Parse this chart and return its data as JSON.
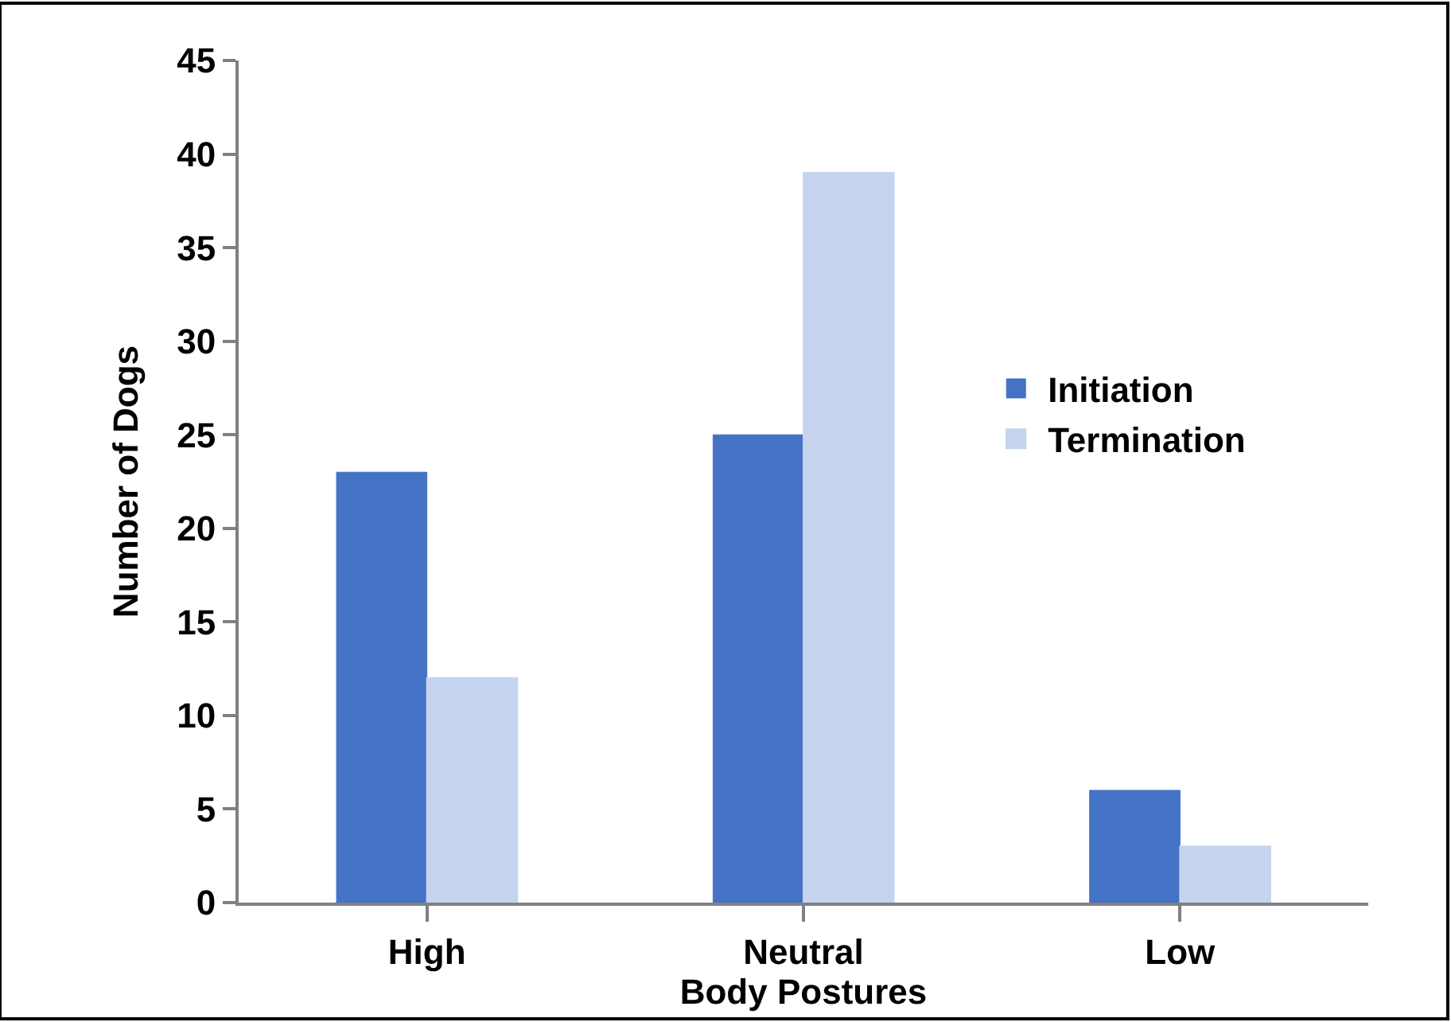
{
  "chart_data": {
    "type": "bar",
    "xlabel": "Body Postures",
    "ylabel": "Number of Dogs",
    "categories": [
      "High",
      "Neutral",
      "Low"
    ],
    "series": [
      {
        "name": "Initiation",
        "color": "#4472c4",
        "values": [
          23,
          25,
          6
        ]
      },
      {
        "name": "Termination",
        "color": "#c5d3ee",
        "values": [
          12,
          39,
          3
        ]
      }
    ],
    "ylim": [
      0,
      45
    ],
    "yticks": [
      0,
      5,
      10,
      15,
      20,
      25,
      30,
      35,
      40,
      45
    ],
    "legend": "right"
  }
}
